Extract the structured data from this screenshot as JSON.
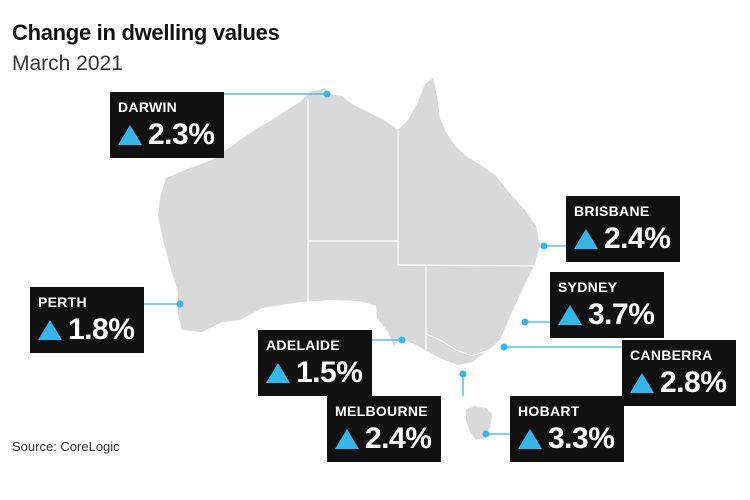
{
  "title": "Change in dwelling values",
  "subtitle": "March 2021",
  "source": "Source: CoreLogic",
  "colors": {
    "land": "#d9d9d9",
    "border": "#ffffff",
    "accent": "#35b6e8",
    "card": "#111111"
  },
  "icon": "up-triangle-icon",
  "cities": [
    {
      "id": "darwin",
      "name": "DARWIN",
      "change": "2.3%",
      "value": 2.3
    },
    {
      "id": "brisbane",
      "name": "BRISBANE",
      "change": "2.4%",
      "value": 2.4
    },
    {
      "id": "perth",
      "name": "PERTH",
      "change": "1.8%",
      "value": 1.8
    },
    {
      "id": "sydney",
      "name": "SYDNEY",
      "change": "3.7%",
      "value": 3.7
    },
    {
      "id": "adelaide",
      "name": "ADELAIDE",
      "change": "1.5%",
      "value": 1.5
    },
    {
      "id": "canberra",
      "name": "CANBERRA",
      "change": "2.8%",
      "value": 2.8
    },
    {
      "id": "melbourne",
      "name": "MELBOURNE",
      "change": "2.4%",
      "value": 2.4
    },
    {
      "id": "hobart",
      "name": "HOBART",
      "change": "3.3%",
      "value": 3.3
    }
  ]
}
